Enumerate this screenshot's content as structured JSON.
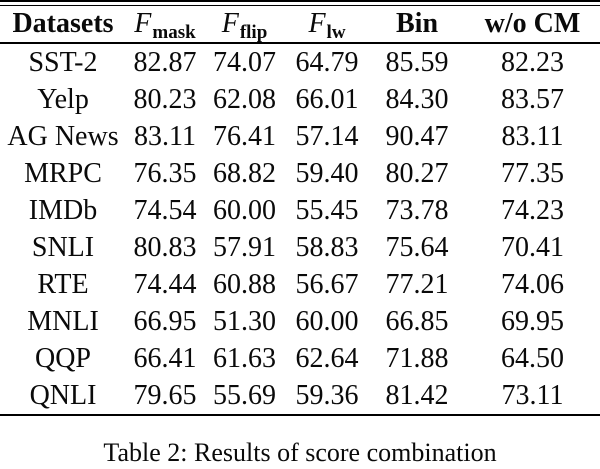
{
  "table": {
    "columns": [
      {
        "label": "Datasets",
        "bold": true
      },
      {
        "base": "F",
        "sub": "mask"
      },
      {
        "base": "F",
        "sub": "flip"
      },
      {
        "base": "F",
        "sub": "lw"
      },
      {
        "label": "Bin",
        "bold": true
      },
      {
        "label": "w/o CM",
        "bold": true
      }
    ],
    "rows": [
      {
        "dataset": "SST-2",
        "values": [
          "82.87",
          "74.07",
          "64.79",
          "85.59",
          "82.23"
        ]
      },
      {
        "dataset": "Yelp",
        "values": [
          "80.23",
          "62.08",
          "66.01",
          "84.30",
          "83.57"
        ]
      },
      {
        "dataset": "AG News",
        "values": [
          "83.11",
          "76.41",
          "57.14",
          "90.47",
          "83.11"
        ]
      },
      {
        "dataset": "MRPC",
        "values": [
          "76.35",
          "68.82",
          "59.40",
          "80.27",
          "77.35"
        ]
      },
      {
        "dataset": "IMDb",
        "values": [
          "74.54",
          "60.00",
          "55.45",
          "73.78",
          "74.23"
        ]
      },
      {
        "dataset": "SNLI",
        "values": [
          "80.83",
          "57.91",
          "58.83",
          "75.64",
          "70.41"
        ]
      },
      {
        "dataset": "RTE",
        "values": [
          "74.44",
          "60.88",
          "56.67",
          "77.21",
          "74.06"
        ]
      },
      {
        "dataset": "MNLI",
        "values": [
          "66.95",
          "51.30",
          "60.00",
          "66.85",
          "69.95"
        ]
      },
      {
        "dataset": "QQP",
        "values": [
          "66.41",
          "61.63",
          "62.64",
          "71.88",
          "64.50"
        ]
      },
      {
        "dataset": "QNLI",
        "values": [
          "79.65",
          "55.69",
          "59.36",
          "81.42",
          "73.11"
        ]
      }
    ]
  },
  "caption": "Table 2: Results of score combination",
  "colors": {
    "text": "#0a0a0a",
    "background": "#ffffff",
    "rule": "#000000"
  },
  "chart_data": {
    "type": "table",
    "title": "Table 2: Results of score combination",
    "categories": [
      "SST-2",
      "Yelp",
      "AG News",
      "MRPC",
      "IMDb",
      "SNLI",
      "RTE",
      "MNLI",
      "QQP",
      "QNLI"
    ],
    "series": [
      {
        "name": "F_mask",
        "values": [
          82.87,
          80.23,
          83.11,
          76.35,
          74.54,
          80.83,
          74.44,
          66.95,
          66.41,
          79.65
        ]
      },
      {
        "name": "F_flip",
        "values": [
          74.07,
          62.08,
          76.41,
          68.82,
          60.0,
          57.91,
          60.88,
          51.3,
          61.63,
          55.69
        ]
      },
      {
        "name": "F_lw",
        "values": [
          64.79,
          66.01,
          57.14,
          59.4,
          55.45,
          58.83,
          56.67,
          60.0,
          62.64,
          59.36
        ]
      },
      {
        "name": "Bin",
        "values": [
          85.59,
          84.3,
          90.47,
          80.27,
          73.78,
          75.64,
          77.21,
          66.85,
          71.88,
          81.42
        ]
      },
      {
        "name": "w/o CM",
        "values": [
          82.23,
          83.57,
          83.11,
          77.35,
          74.23,
          70.41,
          74.06,
          69.95,
          64.5,
          73.11
        ]
      }
    ]
  }
}
